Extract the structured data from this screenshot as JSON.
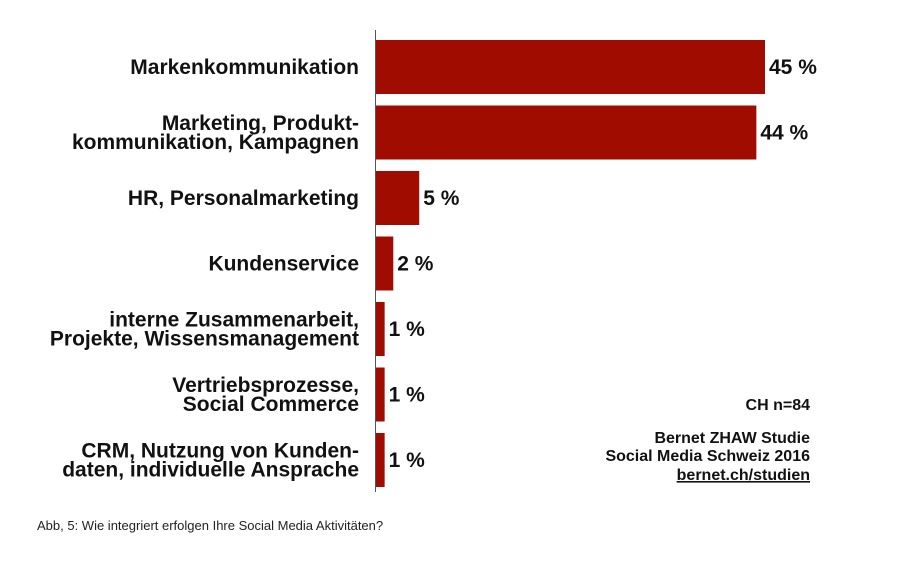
{
  "chart_data": {
    "type": "bar",
    "orientation": "horizontal",
    "categories": [
      [
        "Markenkommunikation"
      ],
      [
        "Marketing, Produkt-",
        "kommunikation, Kampagnen"
      ],
      [
        "HR, Personalmarketing"
      ],
      [
        "Kundenservice"
      ],
      [
        "interne Zusammenarbeit,",
        "Projekte, Wissensmanagement"
      ],
      [
        "Vertriebsprozesse,",
        "Social Commerce"
      ],
      [
        "CRM, Nutzung von Kunden-",
        "daten, individuelle Ansprache"
      ]
    ],
    "values": [
      45,
      44,
      5,
      2,
      1,
      1,
      1
    ],
    "value_labels": [
      "45 %",
      "44 %",
      "5 %",
      "2 %",
      "1 %",
      "1 %",
      "1 %"
    ],
    "xlim": [
      0,
      45
    ],
    "bar_color": "#a00d00",
    "grid": false
  },
  "notes": {
    "sample": "CH n=84",
    "source_line1": "Bernet ZHAW Studie",
    "source_line2": "Social Media Schweiz 2016",
    "source_link": "bernet.ch/studien"
  },
  "caption": "Abb, 5: Wie integriert erfolgen Ihre Social Media Aktivitäten?"
}
